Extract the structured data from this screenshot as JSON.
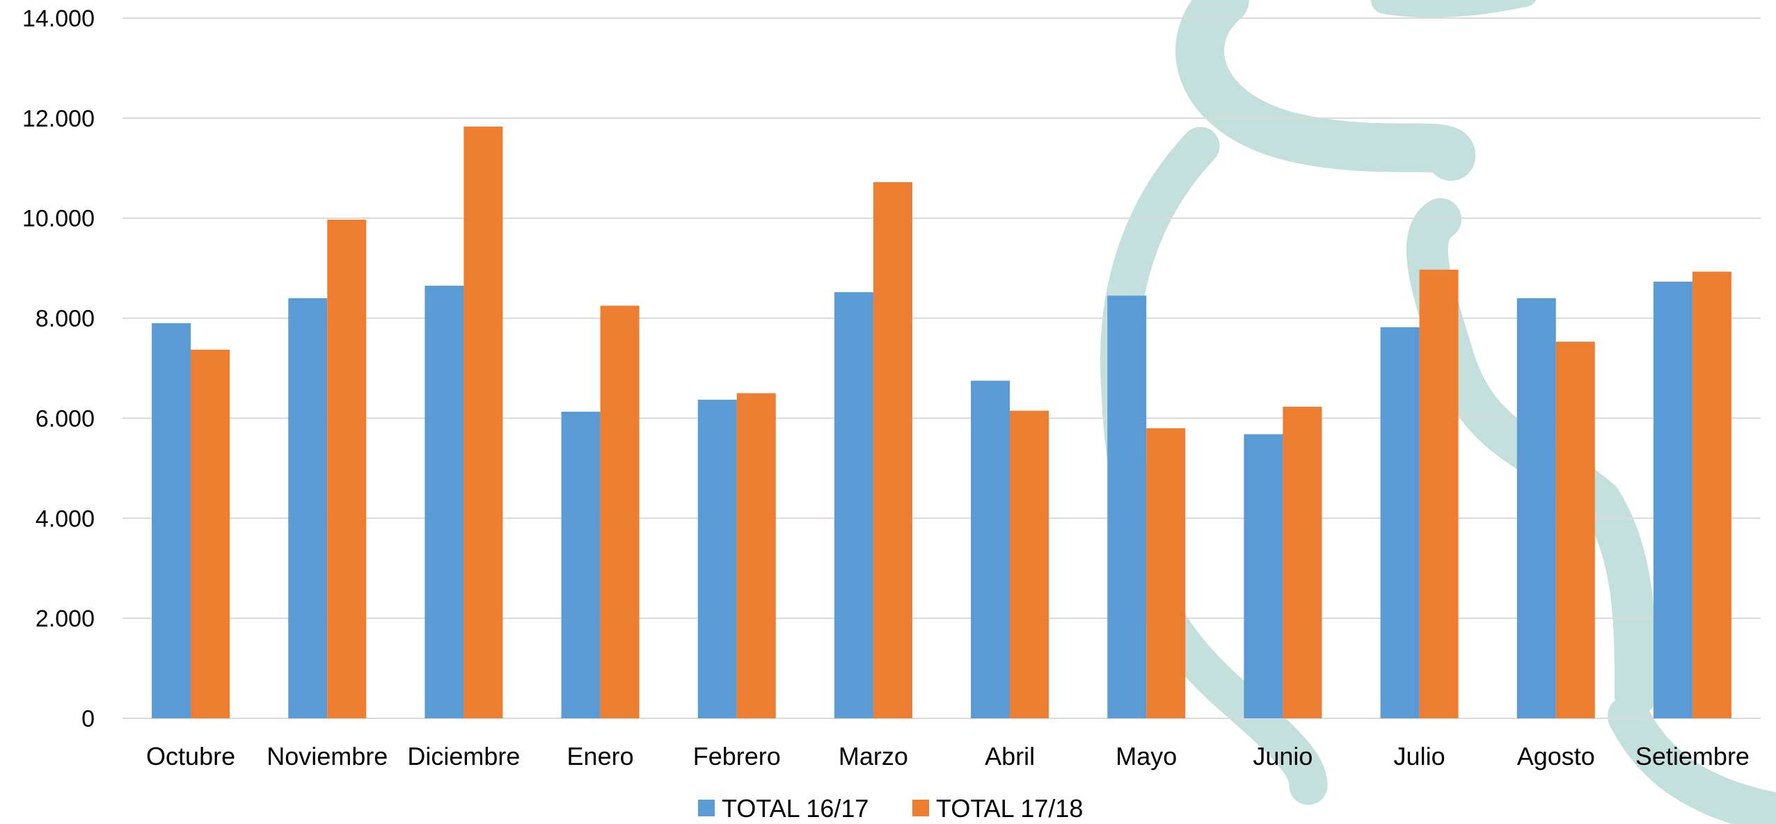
{
  "chart_data": {
    "type": "bar",
    "categories": [
      "Octubre",
      "Noviembre",
      "Diciembre",
      "Enero",
      "Febrero",
      "Marzo",
      "Abril",
      "Mayo",
      "Junio",
      "Julio",
      "Agosto",
      "Setiembre"
    ],
    "series": [
      {
        "name": "TOTAL 16/17",
        "color": "#5b9bd5",
        "values": [
          7900,
          8400,
          8650,
          6130,
          6370,
          8520,
          6750,
          8450,
          5680,
          7820,
          8400,
          8730
        ]
      },
      {
        "name": "TOTAL 17/18",
        "color": "#ed7d31",
        "values": [
          7370,
          9970,
          11830,
          8250,
          6500,
          10720,
          6150,
          5800,
          6230,
          8970,
          7530,
          8930
        ]
      }
    ],
    "ylim": [
      0,
      14000
    ],
    "yticks": [
      "0",
      "2.000",
      "4.000",
      "6.000",
      "8.000",
      "10.000",
      "12.000",
      "14.000"
    ],
    "grid": true,
    "legend_position": "bottom",
    "watermark_color": "#c3e0dc"
  }
}
